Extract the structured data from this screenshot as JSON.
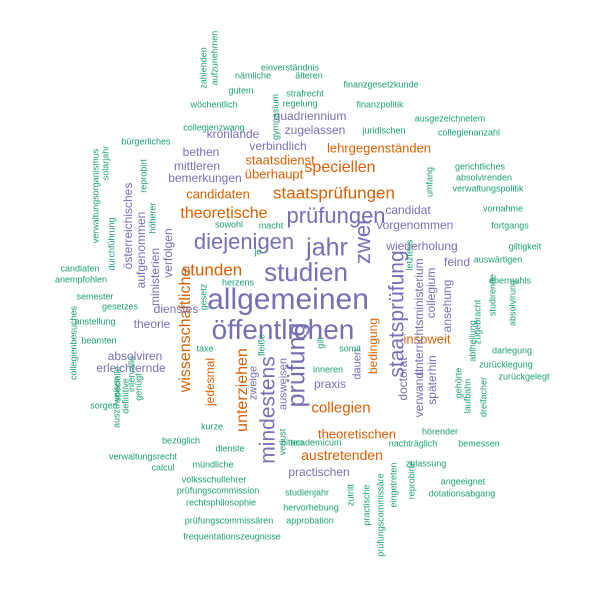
{
  "colors": {
    "purple": "#7570B3",
    "orange": "#D95F02",
    "teal": "#1B9E77"
  },
  "words": [
    {
      "text": "allgemeinen",
      "color": "purple"
    },
    {
      "text": "öffentlichen",
      "color": "purple"
    },
    {
      "text": "studien",
      "color": "purple"
    },
    {
      "text": "prüfung",
      "color": "purple"
    },
    {
      "text": "jahr",
      "color": "purple"
    },
    {
      "text": "prüfungen",
      "color": "purple"
    },
    {
      "text": "diejenigen",
      "color": "purple"
    },
    {
      "text": "mindestens",
      "color": "purple"
    },
    {
      "text": "staatsprüfung",
      "color": "purple"
    },
    {
      "text": "zwei",
      "color": "purple"
    },
    {
      "text": "staatsprüfungen",
      "color": "orange"
    },
    {
      "text": "stunden",
      "color": "orange"
    },
    {
      "text": "theoretische",
      "color": "orange"
    },
    {
      "text": "speciellen",
      "color": "orange"
    },
    {
      "text": "wissenschaftliche",
      "color": "orange"
    },
    {
      "text": "unterziehen",
      "color": "orange"
    },
    {
      "text": "collegien",
      "color": "orange"
    },
    {
      "text": "austretenden",
      "color": "orange"
    },
    {
      "text": "theoretischen",
      "color": "orange"
    },
    {
      "text": "lehrgegenständen",
      "color": "orange"
    },
    {
      "text": "staatsdienst",
      "color": "orange"
    },
    {
      "text": "überhaupt",
      "color": "orange"
    },
    {
      "text": "candidaten",
      "color": "orange"
    },
    {
      "text": "insoweit",
      "color": "orange"
    },
    {
      "text": "bedingung",
      "color": "orange"
    },
    {
      "text": "jedesmal",
      "color": "orange"
    },
    {
      "text": "zulassung",
      "color": "teal"
    },
    {
      "text": "unterrichtsministerium",
      "color": "purple"
    },
    {
      "text": "zugelassen",
      "color": "purple"
    },
    {
      "text": "quadriennium",
      "color": "purple"
    },
    {
      "text": "kronlande",
      "color": "purple"
    },
    {
      "text": "verbindlich",
      "color": "purple"
    },
    {
      "text": "bethen",
      "color": "purple"
    },
    {
      "text": "mittleren",
      "color": "purple"
    },
    {
      "text": "bemerkungen",
      "color": "purple"
    },
    {
      "text": "candidat",
      "color": "purple"
    },
    {
      "text": "vorgenommen",
      "color": "purple"
    },
    {
      "text": "wiederholung",
      "color": "purple"
    },
    {
      "text": "feind",
      "color": "purple"
    },
    {
      "text": "aufgenommen",
      "color": "purple"
    },
    {
      "text": "österreichisches",
      "color": "purple"
    },
    {
      "text": "ministerien",
      "color": "purple"
    },
    {
      "text": "verfolgen",
      "color": "purple"
    },
    {
      "text": "dienstes",
      "color": "purple"
    },
    {
      "text": "theorie",
      "color": "purple"
    },
    {
      "text": "absolviren",
      "color": "purple"
    },
    {
      "text": "erleichternde",
      "color": "purple"
    },
    {
      "text": "collegium",
      "color": "purple"
    },
    {
      "text": "ansehung",
      "color": "purple"
    },
    {
      "text": "späterhin",
      "color": "purple"
    },
    {
      "text": "doctorat",
      "color": "purple"
    },
    {
      "text": "verwandt",
      "color": "purple"
    },
    {
      "text": "praxis",
      "color": "purple"
    },
    {
      "text": "dauert",
      "color": "purple"
    },
    {
      "text": "ausweisen",
      "color": "purple"
    },
    {
      "text": "zweige",
      "color": "purple"
    },
    {
      "text": "practischen",
      "color": "purple"
    },
    {
      "text": "nachträglich",
      "color": "teal"
    },
    {
      "text": "hörender",
      "color": "teal"
    },
    {
      "text": "bemessen",
      "color": "teal"
    },
    {
      "text": "angeeignet",
      "color": "teal"
    },
    {
      "text": "dotationsabgang",
      "color": "teal"
    },
    {
      "text": "reprobirte",
      "color": "teal"
    },
    {
      "text": "eingetreten",
      "color": "teal"
    },
    {
      "text": "prüfungscommissäre",
      "color": "teal"
    },
    {
      "text": "practische",
      "color": "teal"
    },
    {
      "text": "zutritt",
      "color": "teal"
    },
    {
      "text": "hervorhebung",
      "color": "teal"
    },
    {
      "text": "studienjahr",
      "color": "teal"
    },
    {
      "text": "approbation",
      "color": "teal"
    },
    {
      "text": "prüfungscommissären",
      "color": "teal"
    },
    {
      "text": "frequentationszeugnisse",
      "color": "teal"
    },
    {
      "text": "rechtsphilosophie",
      "color": "teal"
    },
    {
      "text": "prüfungscommission",
      "color": "teal"
    },
    {
      "text": "volksschullehrer",
      "color": "teal"
    },
    {
      "text": "mündliche",
      "color": "teal"
    },
    {
      "text": "dienste",
      "color": "teal"
    },
    {
      "text": "calcul",
      "color": "teal"
    },
    {
      "text": "verwaltungsrecht",
      "color": "teal"
    },
    {
      "text": "bezüglich",
      "color": "teal"
    },
    {
      "text": "kurze",
      "color": "teal"
    },
    {
      "text": "verlust",
      "color": "teal"
    },
    {
      "text": "academicum",
      "color": "teal"
    },
    {
      "text": "bitten",
      "color": "teal"
    },
    {
      "text": "genügt",
      "color": "teal"
    },
    {
      "text": "auszuweisen",
      "color": "teal"
    },
    {
      "text": "definitive",
      "color": "teal"
    },
    {
      "text": "intervalle",
      "color": "teal"
    },
    {
      "text": "specielle",
      "color": "teal"
    },
    {
      "text": "sorgen",
      "color": "teal"
    },
    {
      "text": "collegienbesuches",
      "color": "teal"
    },
    {
      "text": "beamten",
      "color": "teal"
    },
    {
      "text": "anstellung",
      "color": "teal"
    },
    {
      "text": "gesetzes",
      "color": "teal"
    },
    {
      "text": "semester",
      "color": "teal"
    },
    {
      "text": "anempfohlen",
      "color": "teal"
    },
    {
      "text": "candiaten",
      "color": "teal"
    },
    {
      "text": "durchführung",
      "color": "teal"
    },
    {
      "text": "verwaltungsorganismus",
      "color": "teal"
    },
    {
      "text": "solarjahr",
      "color": "teal"
    },
    {
      "text": "reprobirt",
      "color": "teal"
    },
    {
      "text": "bürgerliches",
      "color": "teal"
    },
    {
      "text": "höherer",
      "color": "teal"
    },
    {
      "text": "collegienzwang",
      "color": "teal"
    },
    {
      "text": "wöchentlich",
      "color": "teal"
    },
    {
      "text": "gutem",
      "color": "teal"
    },
    {
      "text": "nämliche",
      "color": "teal"
    },
    {
      "text": "zahlenden",
      "color": "teal"
    },
    {
      "text": "aufzunehmen",
      "color": "teal"
    },
    {
      "text": "einverständnis",
      "color": "teal"
    },
    {
      "text": "älteren",
      "color": "teal"
    },
    {
      "text": "finanzgesetzkunde",
      "color": "teal"
    },
    {
      "text": "strafrecht",
      "color": "teal"
    },
    {
      "text": "regelung",
      "color": "teal"
    },
    {
      "text": "gymnasium",
      "color": "teal"
    },
    {
      "text": "finanzpolitik",
      "color": "teal"
    },
    {
      "text": "ausgezeichnetem",
      "color": "teal"
    },
    {
      "text": "juridischen",
      "color": "teal"
    },
    {
      "text": "collegienanzahl",
      "color": "teal"
    },
    {
      "text": "gerichtliches",
      "color": "teal"
    },
    {
      "text": "absolvirenden",
      "color": "teal"
    },
    {
      "text": "verwaltungspolitik",
      "color": "teal"
    },
    {
      "text": "umfang",
      "color": "teal"
    },
    {
      "text": "vornahme",
      "color": "teal"
    },
    {
      "text": "fortgangs",
      "color": "teal"
    },
    {
      "text": "giltigkeit",
      "color": "teal"
    },
    {
      "text": "auswärtigen",
      "color": "teal"
    },
    {
      "text": "abermahls",
      "color": "teal"
    },
    {
      "text": "studirende",
      "color": "teal"
    },
    {
      "text": "absolvirung",
      "color": "teal"
    },
    {
      "text": "zugebracht",
      "color": "teal"
    },
    {
      "text": "abtheilung",
      "color": "teal"
    },
    {
      "text": "darlegung",
      "color": "teal"
    },
    {
      "text": "zurücklegung",
      "color": "teal"
    },
    {
      "text": "zurückgelegt",
      "color": "teal"
    },
    {
      "text": "dreifacher",
      "color": "teal"
    },
    {
      "text": "laufbahn",
      "color": "teal"
    },
    {
      "text": "gehörte",
      "color": "teal"
    },
    {
      "text": "letztens",
      "color": "teal"
    },
    {
      "text": "sowohl",
      "color": "teal"
    },
    {
      "text": "macht",
      "color": "teal"
    },
    {
      "text": "je",
      "color": "teal"
    },
    {
      "text": "herzens",
      "color": "teal"
    },
    {
      "text": "gesetz",
      "color": "teal"
    },
    {
      "text": "taxe",
      "color": "teal"
    },
    {
      "text": "fleiße",
      "color": "teal"
    },
    {
      "text": "gilt",
      "color": "teal"
    },
    {
      "text": "somit",
      "color": "teal"
    },
    {
      "text": "inneren",
      "color": "teal"
    }
  ]
}
